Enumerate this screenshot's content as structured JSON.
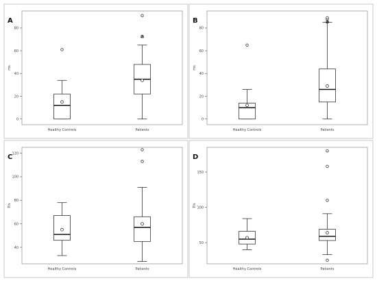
{
  "chart_data": [
    {
      "type": "box",
      "panel": "A",
      "ylabel": "ms",
      "ylim": [
        -5,
        95
      ],
      "yticks": [
        0,
        20,
        40,
        60,
        80
      ],
      "categories": [
        "Healthy Controls",
        "Patients"
      ],
      "boxes": [
        {
          "whisker_low": 0,
          "q1": 0,
          "median": 12,
          "q3": 22,
          "whisker_high": 34,
          "mean": 15,
          "outliers": [
            61
          ]
        },
        {
          "whisker_low": 0,
          "q1": 22,
          "median": 35,
          "q3": 48,
          "whisker_high": 65,
          "mean": 34,
          "outliers": [
            91
          ]
        }
      ],
      "annotations": [
        {
          "category_index": 1,
          "value": 73,
          "text": "a"
        }
      ]
    },
    {
      "type": "box",
      "panel": "B",
      "ylabel": "ms",
      "ylim": [
        -5,
        95
      ],
      "yticks": [
        0,
        20,
        40,
        60,
        80
      ],
      "categories": [
        "Healthy Controls",
        "Patients"
      ],
      "boxes": [
        {
          "whisker_low": 0,
          "q1": 0,
          "median": 10,
          "q3": 14,
          "whisker_high": 26,
          "mean": 12,
          "outliers": [
            65
          ]
        },
        {
          "whisker_low": 0,
          "q1": 15,
          "median": 26,
          "q3": 44,
          "whisker_high": 85,
          "mean": 29,
          "outliers": [
            88,
            89
          ]
        }
      ],
      "annotations": [
        {
          "category_index": 1,
          "value": 86,
          "text": "a"
        }
      ]
    },
    {
      "type": "box",
      "panel": "C",
      "ylabel": "P/s",
      "ylim": [
        26,
        125
      ],
      "yticks": [
        40,
        60,
        80,
        100,
        120
      ],
      "categories": [
        "Healthy Controls",
        "Patients"
      ],
      "boxes": [
        {
          "whisker_low": 33,
          "q1": 46,
          "median": 51,
          "q3": 67,
          "whisker_high": 78,
          "mean": 55,
          "outliers": []
        },
        {
          "whisker_low": 28,
          "q1": 45,
          "median": 57,
          "q3": 66,
          "whisker_high": 91,
          "mean": 60,
          "outliers": [
            113,
            123
          ]
        }
      ],
      "annotations": []
    },
    {
      "type": "box",
      "panel": "D",
      "ylabel": "P/s",
      "ylim": [
        20,
        185
      ],
      "yticks": [
        50,
        100,
        150
      ],
      "categories": [
        "Healthy Controls",
        "Patients"
      ],
      "boxes": [
        {
          "whisker_low": 40,
          "q1": 48,
          "median": 55,
          "q3": 66,
          "whisker_high": 84,
          "mean": 57,
          "outliers": []
        },
        {
          "whisker_low": 33,
          "q1": 53,
          "median": 59,
          "q3": 69,
          "whisker_high": 91,
          "mean": 64,
          "outliers": [
            25,
            110,
            158,
            180
          ]
        }
      ],
      "annotations": []
    }
  ]
}
